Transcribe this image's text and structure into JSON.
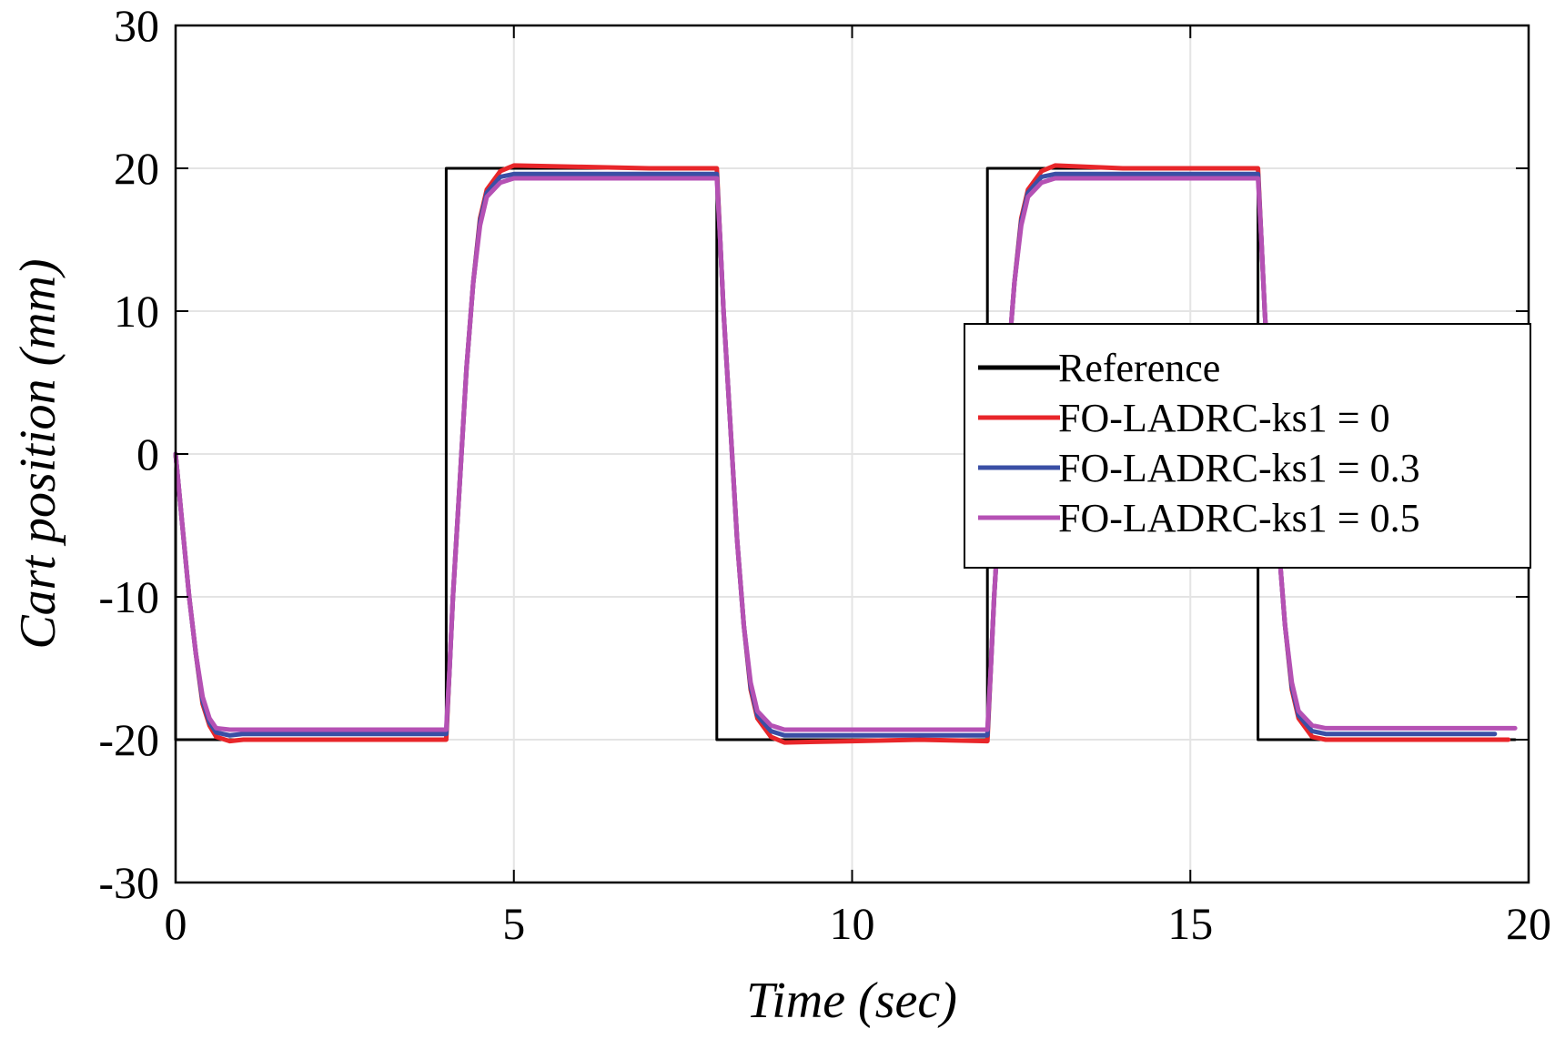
{
  "chart_data": {
    "type": "line",
    "title": "",
    "xlabel": "Time (sec)",
    "ylabel": "Cart position (mm)",
    "xlim": [
      0,
      20
    ],
    "ylim": [
      -30,
      30
    ],
    "xticks": [
      0,
      5,
      10,
      15,
      20
    ],
    "yticks": [
      -30,
      -20,
      -10,
      0,
      10,
      20,
      30
    ],
    "xtick_labels": [
      "0",
      "5",
      "10",
      "15",
      "20"
    ],
    "ytick_labels": [
      "-30",
      "-20",
      "-10",
      "0",
      "10",
      "20",
      "30"
    ],
    "grid": true,
    "legend_position": "center-right",
    "series": [
      {
        "name": "Reference",
        "color": "#000000",
        "x": [
          0,
          0,
          4,
          4,
          8,
          8,
          12,
          12,
          16,
          16,
          19.8
        ],
        "y": [
          0,
          -20,
          -20,
          20,
          20,
          -20,
          -20,
          20,
          20,
          -20,
          -20
        ]
      },
      {
        "name": "FO-LADRC-ks1 = 0",
        "color": "#e8262a",
        "x": [
          0,
          0.1,
          0.2,
          0.3,
          0.4,
          0.5,
          0.6,
          0.8,
          1.0,
          2.0,
          3.0,
          4.0,
          4.05,
          4.1,
          4.2,
          4.3,
          4.4,
          4.5,
          4.6,
          4.8,
          5.0,
          6.0,
          7.0,
          8.0,
          8.05,
          8.1,
          8.2,
          8.3,
          8.4,
          8.5,
          8.6,
          8.8,
          9.0,
          10.0,
          11.0,
          12.0,
          12.05,
          12.1,
          12.2,
          12.3,
          12.4,
          12.5,
          12.6,
          12.8,
          13.0,
          14.0,
          15.0,
          16.0,
          16.05,
          16.1,
          16.2,
          16.3,
          16.4,
          16.5,
          16.6,
          16.8,
          17.0,
          18.0,
          19.0,
          19.7
        ],
        "y": [
          0,
          -5,
          -10,
          -14,
          -17.5,
          -19,
          -19.8,
          -20.1,
          -20,
          -20,
          -20,
          -20,
          -15,
          -10,
          -2,
          6,
          12,
          16.5,
          18.5,
          19.8,
          20.2,
          20.1,
          20,
          20,
          15,
          10,
          2,
          -6,
          -12,
          -16.5,
          -18.5,
          -19.8,
          -20.2,
          -20.1,
          -20,
          -20.1,
          -15,
          -10,
          -2,
          6,
          12,
          16.5,
          18.5,
          19.8,
          20.2,
          20,
          20,
          20,
          15,
          10,
          2,
          -6,
          -12,
          -16.5,
          -18.5,
          -19.8,
          -20,
          -20,
          -20,
          -20
        ]
      },
      {
        "name": "FO-LADRC-ks1 = 0.3",
        "color": "#3a4fa5",
        "x": [
          0,
          0.1,
          0.2,
          0.3,
          0.4,
          0.5,
          0.6,
          0.8,
          1.0,
          2.0,
          3.0,
          4.0,
          4.05,
          4.1,
          4.2,
          4.3,
          4.4,
          4.5,
          4.6,
          4.8,
          5.0,
          6.0,
          7.0,
          8.0,
          8.05,
          8.1,
          8.2,
          8.3,
          8.4,
          8.5,
          8.6,
          8.8,
          9.0,
          10.0,
          11.0,
          12.0,
          12.05,
          12.1,
          12.2,
          12.3,
          12.4,
          12.5,
          12.6,
          12.8,
          13.0,
          14.0,
          15.0,
          16.0,
          16.05,
          16.1,
          16.2,
          16.3,
          16.4,
          16.5,
          16.6,
          16.8,
          17.0,
          18.0,
          19.0,
          19.5
        ],
        "y": [
          0,
          -5,
          -10,
          -14,
          -17.3,
          -18.8,
          -19.5,
          -19.7,
          -19.6,
          -19.6,
          -19.6,
          -19.6,
          -15,
          -10,
          -2,
          6,
          12,
          16.3,
          18.3,
          19.4,
          19.6,
          19.6,
          19.6,
          19.6,
          15,
          10,
          2,
          -6,
          -12,
          -16.3,
          -18.3,
          -19.4,
          -19.7,
          -19.7,
          -19.7,
          -19.7,
          -15,
          -10,
          -2,
          6,
          12,
          16.3,
          18.3,
          19.4,
          19.6,
          19.6,
          19.6,
          19.6,
          15,
          10,
          2,
          -6,
          -12,
          -16.3,
          -18.3,
          -19.4,
          -19.6,
          -19.6,
          -19.6,
          -19.6
        ]
      },
      {
        "name": "FO-LADRC-ks1 = 0.5",
        "color": "#b551b4",
        "x": [
          0,
          0.1,
          0.2,
          0.3,
          0.4,
          0.5,
          0.6,
          0.8,
          1.0,
          2.0,
          3.0,
          4.0,
          4.05,
          4.1,
          4.2,
          4.3,
          4.4,
          4.5,
          4.6,
          4.8,
          5.0,
          6.0,
          7.0,
          8.0,
          8.05,
          8.1,
          8.2,
          8.3,
          8.4,
          8.5,
          8.6,
          8.8,
          9.0,
          10.0,
          11.0,
          12.0,
          12.05,
          12.1,
          12.2,
          12.3,
          12.4,
          12.5,
          12.6,
          12.8,
          13.0,
          14.0,
          15.0,
          16.0,
          16.05,
          16.1,
          16.2,
          16.3,
          16.4,
          16.5,
          16.6,
          16.8,
          17.0,
          18.0,
          19.0,
          19.8
        ],
        "y": [
          0,
          -5,
          -10,
          -14,
          -17,
          -18.5,
          -19.2,
          -19.3,
          -19.3,
          -19.3,
          -19.3,
          -19.3,
          -15,
          -10,
          -2,
          6,
          12,
          16,
          18,
          19,
          19.3,
          19.3,
          19.3,
          19.3,
          15,
          10,
          2,
          -6,
          -12,
          -16,
          -18,
          -19,
          -19.3,
          -19.3,
          -19.3,
          -19.3,
          -15,
          -10,
          -2,
          6,
          12,
          16,
          18,
          19,
          19.3,
          19.3,
          19.3,
          19.3,
          15,
          10,
          2,
          -6,
          -12,
          -16,
          -18,
          -19,
          -19.2,
          -19.2,
          -19.2,
          -19.2
        ]
      }
    ]
  }
}
